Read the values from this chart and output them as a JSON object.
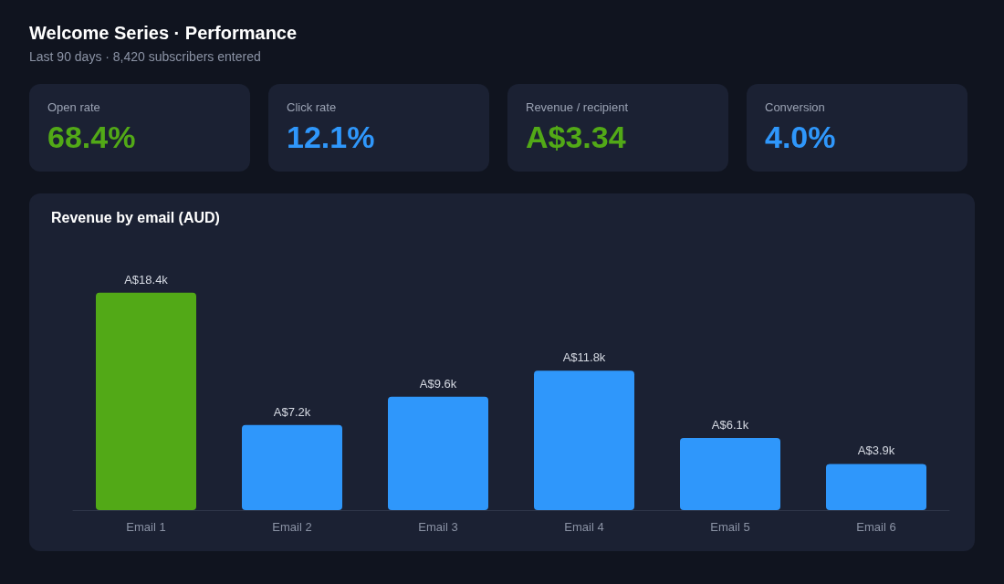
{
  "chart_data": [
    {
      "type": "other",
      "title": "Welcome Series · Performance",
      "subtitle": "Last 90 days · 8,420 subscribers entered"
    },
    {
      "type": "other",
      "title": "Open rate",
      "annotations": [
        "68.4%"
      ],
      "color": "#52a917"
    },
    {
      "type": "other",
      "title": "Click rate",
      "annotations": [
        "12.1%"
      ],
      "color": "#2f97fb"
    },
    {
      "type": "other",
      "title": "Revenue / recipient",
      "annotations": [
        "A$3.34"
      ],
      "color": "#52a917"
    },
    {
      "type": "other",
      "title": "Conversion",
      "annotations": [
        "4.0%"
      ],
      "color": "#2f97fb"
    },
    {
      "type": "bar",
      "title": "Revenue by email (AUD)",
      "categories": [
        "Email 1",
        "Email 2",
        "Email 3",
        "Email 4",
        "Email 5",
        "Email 6"
      ],
      "values": [
        18400,
        7200,
        9600,
        11800,
        6100,
        3900
      ],
      "value_labels": [
        "A$18.4k",
        "A$7.2k",
        "A$9.6k",
        "A$11.8k",
        "A$6.1k",
        "A$3.9k"
      ],
      "colors": [
        "#52a917",
        "#2f97fb",
        "#2f97fb",
        "#2f97fb",
        "#2f97fb",
        "#2f97fb"
      ],
      "grid": false
    }
  ]
}
